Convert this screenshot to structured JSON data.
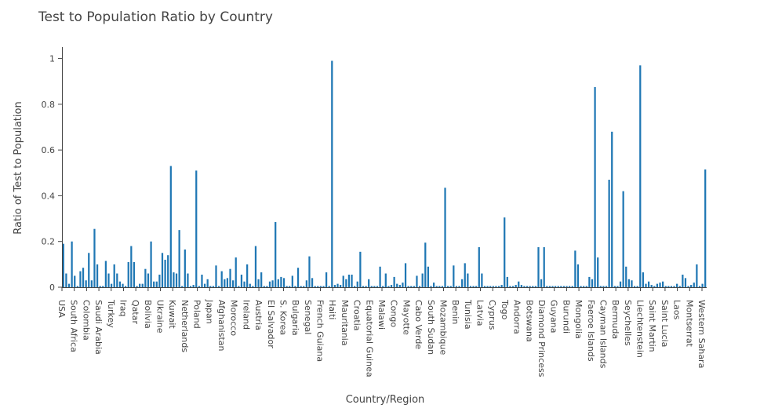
{
  "chart_data": {
    "type": "bar",
    "title": "Test to Population Ratio by Country",
    "xlabel": "Country/Region",
    "ylabel": "Ratio of Test to Population",
    "ylim": [
      0,
      1.05
    ],
    "yticks": [
      0,
      0.2,
      0.4,
      0.6,
      0.8,
      1
    ],
    "ytick_labels": [
      "0",
      "0.2",
      "0.4",
      "0.6",
      "0.8",
      "1"
    ],
    "bar_color": "#1f77b4",
    "grid": false,
    "legend": "none",
    "tick_labels": [
      "USA",
      "South Africa",
      "Colombia",
      "Saudi Arabia",
      "Turkey",
      "Iraq",
      "Qatar",
      "Bolivia",
      "Ukraine",
      "Kuwait",
      "Netherlands",
      "Poland",
      "Japan",
      "Afghanistan",
      "Morocco",
      "Ireland",
      "Austria",
      "El Salvador",
      "S. Korea",
      "Bulgaria",
      "Senegal",
      "French Guiana",
      "Haiti",
      "Mauritania",
      "Croatia",
      "Equatorial Guinea",
      "Malawi",
      "Congo",
      "Mayotte",
      "Cabo Verde",
      "South Sudan",
      "Mozambique",
      "Benin",
      "Tunisia",
      "Latvia",
      "Cyprus",
      "Togo",
      "Andorra",
      "Botswana",
      "Diamond Princess",
      "Guyana",
      "Burundi",
      "Mongolia",
      "Faeroe Islands",
      "Cayman Islands",
      "Bermuda",
      "Seychelles",
      "Liechtenstein",
      "Saint Martin",
      "Saint Lucia",
      "Laos",
      "Montserrat",
      "Western Sahara"
    ],
    "values": [
      0.19,
      0.06,
      0.015,
      0.2,
      0.05,
      0.005,
      0.07,
      0.085,
      0.03,
      0.15,
      0.03,
      0.255,
      0.1,
      0.005,
      0.005,
      0.115,
      0.06,
      0.015,
      0.1,
      0.06,
      0.025,
      0.015,
      0.005,
      0.11,
      0.18,
      0.11,
      0.005,
      0.015,
      0.015,
      0.08,
      0.06,
      0.2,
      0.025,
      0.025,
      0.055,
      0.15,
      0.12,
      0.14,
      0.53,
      0.065,
      0.06,
      0.25,
      0.005,
      0.165,
      0.06,
      0.005,
      0.01,
      0.51,
      0.005,
      0.055,
      0.015,
      0.035,
      0.005,
      0.005,
      0.095,
      0.005,
      0.07,
      0.035,
      0.04,
      0.08,
      0.03,
      0.13,
      0.005,
      0.055,
      0.025,
      0.1,
      0.015,
      0.005,
      0.18,
      0.035,
      0.065,
      0.005,
      0.005,
      0.025,
      0.03,
      0.285,
      0.035,
      0.045,
      0.04,
      0.005,
      0.005,
      0.05,
      0.005,
      0.085,
      0.005,
      0.005,
      0.03,
      0.135,
      0.04,
      0.005,
      0.005,
      0.005,
      0.005,
      0.065,
      0.005,
      0.99,
      0.01,
      0.015,
      0.01,
      0.05,
      0.035,
      0.055,
      0.055,
      0.005,
      0.025,
      0.155,
      0.005,
      0.005,
      0.035,
      0.005,
      0.005,
      0.005,
      0.09,
      0.005,
      0.06,
      0.005,
      0.01,
      0.045,
      0.015,
      0.01,
      0.02,
      0.105,
      0.005,
      0.005,
      0.005,
      0.05,
      0.005,
      0.06,
      0.195,
      0.09,
      0.005,
      0.02,
      0.005,
      0.005,
      0.005,
      0.435,
      0.005,
      0.005,
      0.095,
      0.005,
      0.005,
      0.035,
      0.105,
      0.06,
      0.005,
      0.005,
      0.005,
      0.175,
      0.06,
      0.005,
      0.005,
      0.005,
      0.005,
      0.005,
      0.005,
      0.01,
      0.305,
      0.045,
      0.005,
      0.005,
      0.01,
      0.025,
      0.01,
      0.005,
      0.005,
      0.005,
      0.005,
      0.005,
      0.175,
      0.035,
      0.175,
      0.005,
      0.005,
      0.005,
      0.005,
      0.005,
      0.005,
      0.005,
      0.005,
      0.005,
      0.005,
      0.16,
      0.1,
      0.005,
      0.005,
      0.005,
      0.045,
      0.035,
      0.875,
      0.13,
      0.005,
      0.005,
      0.005,
      0.47,
      0.68,
      0.005,
      0.005,
      0.025,
      0.42,
      0.09,
      0.035,
      0.03,
      0.005,
      0.005,
      0.97,
      0.065,
      0.015,
      0.025,
      0.01,
      0.005,
      0.015,
      0.02,
      0.025,
      0.005,
      0.005,
      0.005,
      0.005,
      0.015,
      0.005,
      0.055,
      0.04,
      0.005,
      0.01,
      0.02,
      0.1,
      0.005,
      0.015,
      0.515
    ]
  }
}
